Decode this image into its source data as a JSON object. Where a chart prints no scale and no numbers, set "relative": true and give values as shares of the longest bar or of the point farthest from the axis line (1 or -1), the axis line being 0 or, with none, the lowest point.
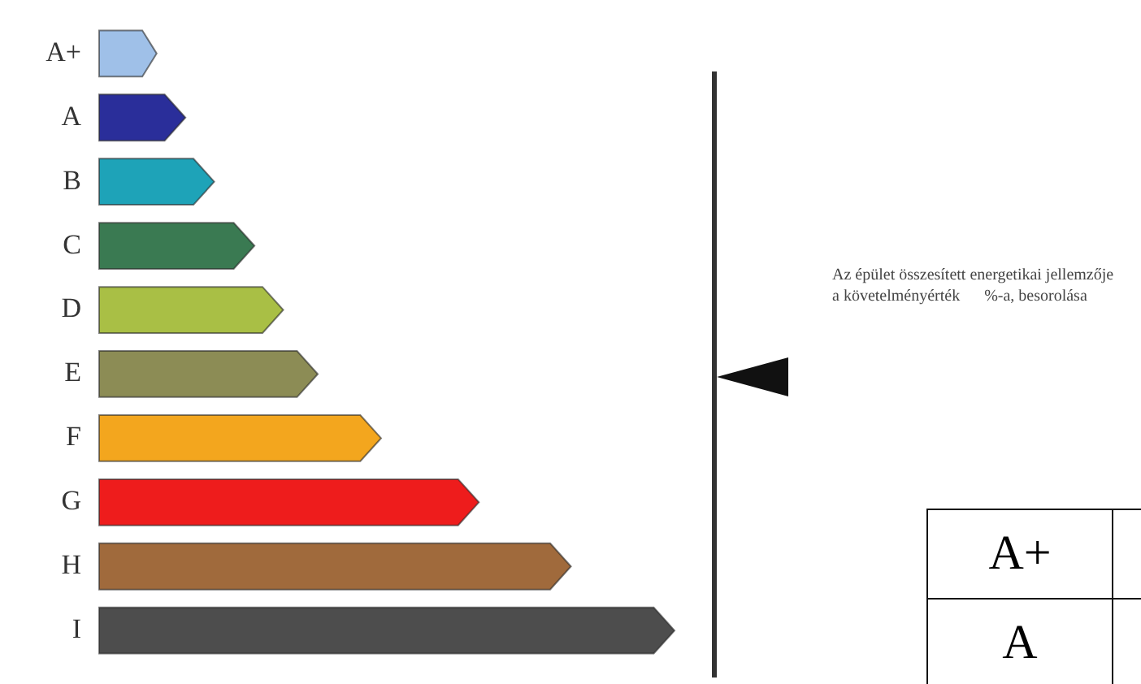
{
  "chart_data": {
    "type": "bar",
    "orientation": "horizontal",
    "relative": true,
    "categories": [
      "A+",
      "A",
      "B",
      "C",
      "D",
      "E",
      "F",
      "G",
      "H",
      "I"
    ],
    "values": [
      0.1,
      0.15,
      0.2,
      0.27,
      0.32,
      0.38,
      0.49,
      0.66,
      0.82,
      1
    ],
    "colors": [
      "#9fc0e8",
      "#2a2e9a",
      "#1ea3b8",
      "#3a7a52",
      "#a9bf45",
      "#8c8c55",
      "#f3a61e",
      "#ee1c1c",
      "#a06a3c",
      "#4d4d4d"
    ],
    "annotations": [
      "Az épület összesített energetikai jellemzője a követelményérték      %-a, besorolása",
      "A+",
      "A"
    ]
  }
}
